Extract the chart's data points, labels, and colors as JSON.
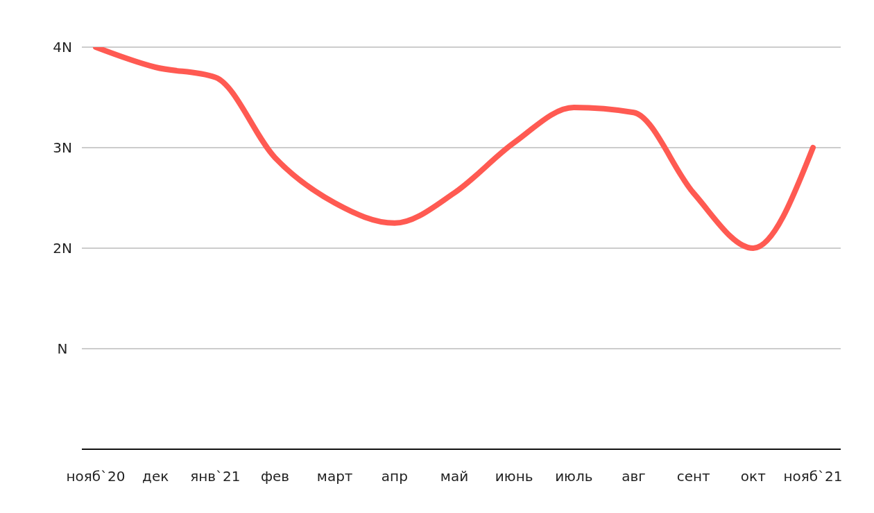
{
  "chart_data": {
    "type": "line",
    "categories": [
      "нояб`20",
      "дек",
      "янв`21",
      "фев",
      "март",
      "апр",
      "май",
      "июнь",
      "июль",
      "авг",
      "сент",
      "окт",
      "нояб`21"
    ],
    "series": [
      {
        "color": "#ff5a52",
        "values": [
          4.0,
          3.8,
          3.7,
          2.9,
          2.45,
          2.25,
          2.55,
          3.05,
          3.4,
          3.35,
          2.55,
          2.0,
          3.0
        ]
      }
    ],
    "ylim": [
      0,
      4
    ],
    "yticks": [
      {
        "value": 1,
        "label": "N"
      },
      {
        "value": 2,
        "label": "2N"
      },
      {
        "value": 3,
        "label": "3N"
      },
      {
        "value": 4,
        "label": "4N"
      }
    ],
    "grid": "y",
    "marker": "none",
    "line_style": "solid"
  }
}
